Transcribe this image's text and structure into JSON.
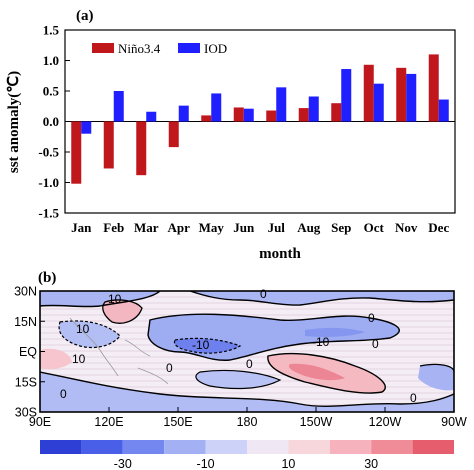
{
  "chart_data": [
    {
      "type": "bar",
      "panel_label": "(a)",
      "xlabel": "month",
      "ylabel": "sst anomaly(℃)",
      "categories": [
        "Jan",
        "Feb",
        "Mar",
        "Apr",
        "May",
        "Jun",
        "Jul",
        "Aug",
        "Sep",
        "Oct",
        "Nov",
        "Dec"
      ],
      "ylim": [
        -1.5,
        1.5
      ],
      "yticks": [
        "-1.5",
        "-1.0",
        "-0.5",
        "0.0",
        "0.5",
        "1.0",
        "1.5"
      ],
      "legend_position": "top-left",
      "series": [
        {
          "name": "Niño3.4",
          "color": "#c0171d",
          "values": [
            -1.02,
            -0.77,
            -0.88,
            -0.42,
            0.1,
            0.23,
            0.18,
            0.22,
            0.3,
            0.93,
            0.88,
            1.1
          ]
        },
        {
          "name": "IOD",
          "color": "#1f1fff",
          "values": [
            -0.2,
            0.5,
            0.16,
            0.26,
            0.46,
            0.21,
            0.56,
            0.41,
            0.86,
            0.62,
            0.78,
            0.36
          ]
        }
      ]
    },
    {
      "type": "heatmap",
      "panel_label": "(b)",
      "xticks": [
        "90E",
        "120E",
        "150E",
        "180",
        "150W",
        "120W",
        "90W"
      ],
      "yticks": [
        "30N",
        "15N",
        "EQ",
        "15S",
        "30S"
      ],
      "contour_labels": [
        "10",
        "0",
        "0",
        "10",
        "-10",
        "-10",
        "0",
        "0",
        "10",
        "0",
        "0",
        "0"
      ],
      "colorbar_labels": [
        "-30",
        "-10",
        "10",
        "30"
      ],
      "colorbar_colors": [
        "#2e3fd6",
        "#4a5fe8",
        "#7486ef",
        "#a3b0f4",
        "#cdd3f8",
        "#efe7f3",
        "#f7d6dc",
        "#f6b3bd",
        "#f08c98",
        "#e65e6e"
      ]
    }
  ]
}
